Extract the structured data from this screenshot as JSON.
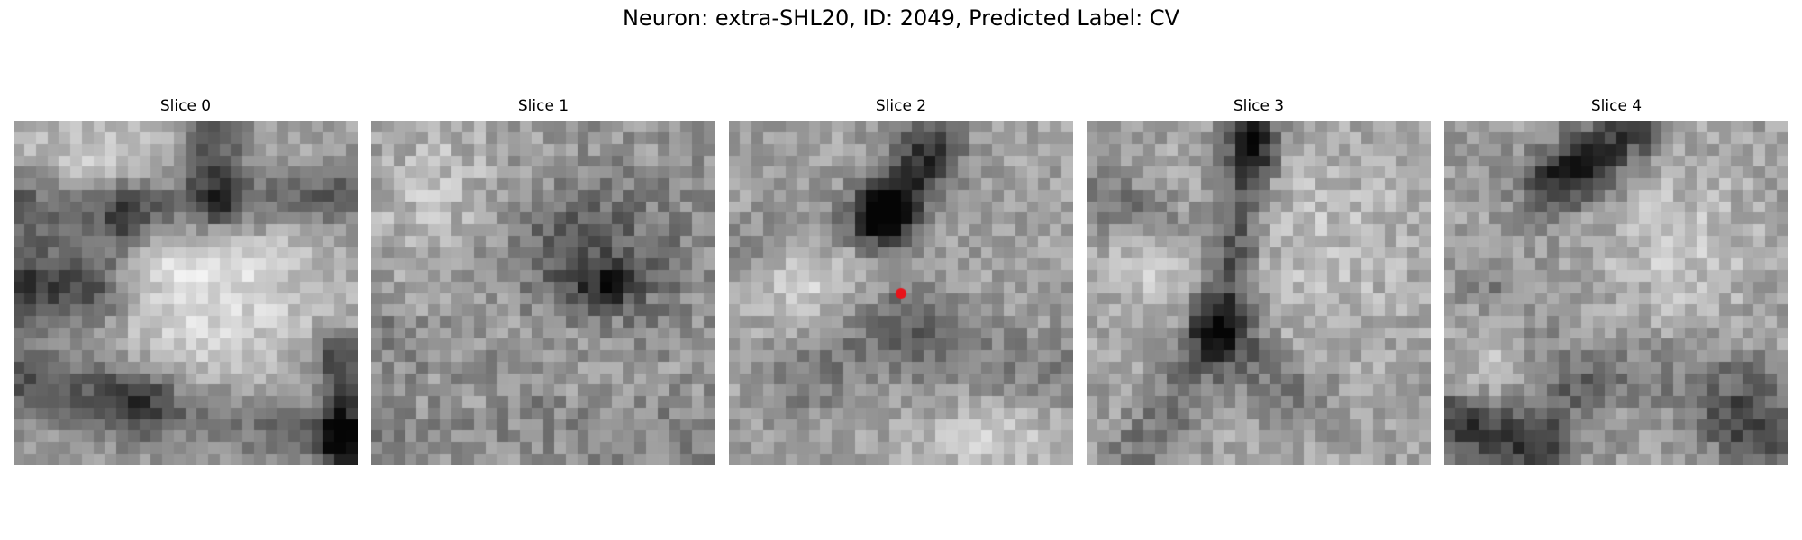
{
  "figure": {
    "title": "Neuron: extra-SHL20, ID: 2049, Predicted Label: CV"
  },
  "slices": [
    {
      "label": "Slice 0"
    },
    {
      "label": "Slice 1"
    },
    {
      "label": "Slice 2",
      "has_marker": true
    },
    {
      "label": "Slice 3"
    },
    {
      "label": "Slice 4"
    }
  ],
  "colors": {
    "colormap": "gray",
    "marker": "#e8131a",
    "background": "#ffffff"
  }
}
